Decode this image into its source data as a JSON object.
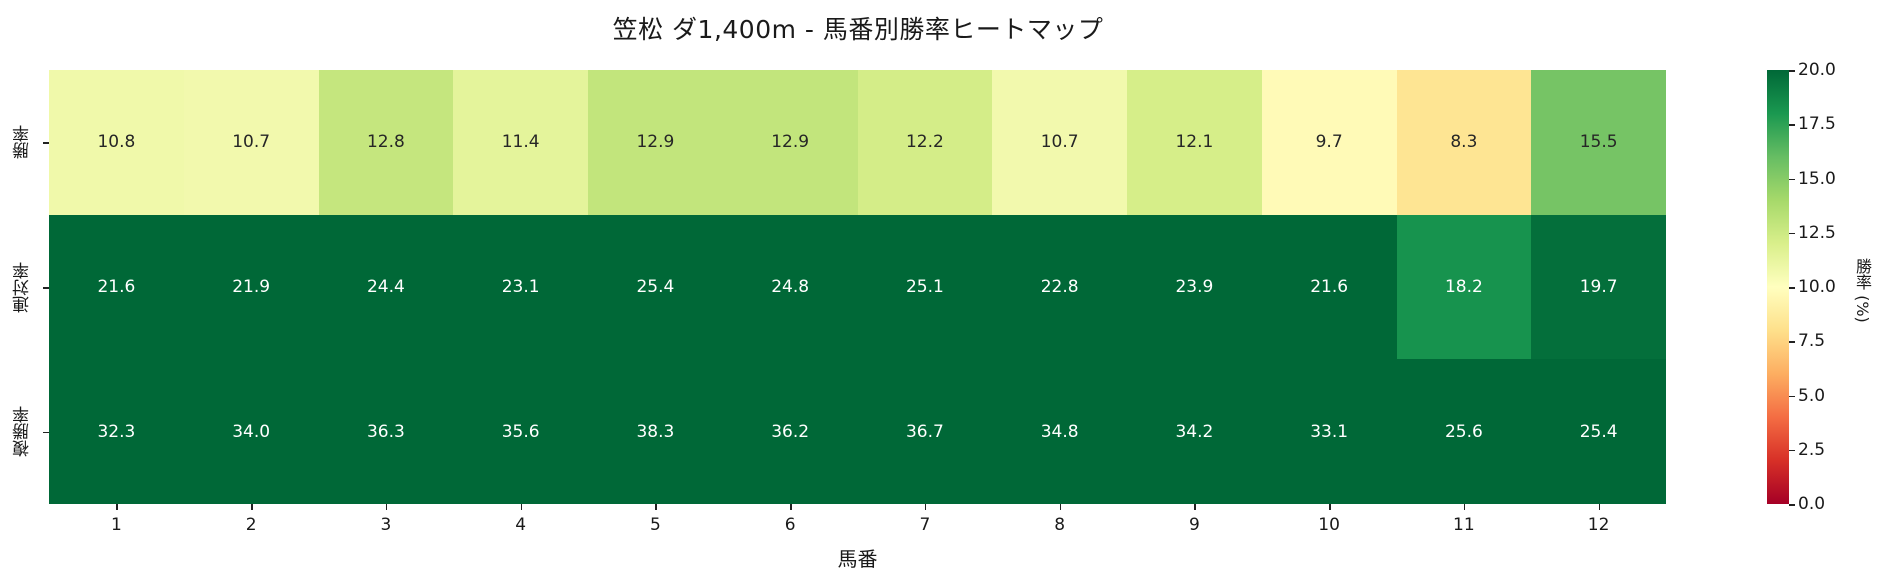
{
  "title": "笠松 ダ1,400m - 馬番別勝率ヒートマップ",
  "xaxis_title": "馬番",
  "colorbar_title": "勝率 (%)",
  "row_labels": [
    "勝率",
    "連対率",
    "複勝率"
  ],
  "col_labels": [
    "1",
    "2",
    "3",
    "4",
    "5",
    "6",
    "7",
    "8",
    "9",
    "10",
    "11",
    "12"
  ],
  "colorbar_ticks": [
    "0.0",
    "2.5",
    "5.0",
    "7.5",
    "10.0",
    "12.5",
    "15.0",
    "17.5",
    "20.0"
  ],
  "cells": [
    [
      "10.8",
      "10.7",
      "12.8",
      "11.4",
      "12.9",
      "12.9",
      "12.2",
      "10.7",
      "12.1",
      "9.7",
      "8.3",
      "15.5"
    ],
    [
      "21.6",
      "21.9",
      "24.4",
      "23.1",
      "25.4",
      "24.8",
      "25.1",
      "22.8",
      "23.9",
      "21.6",
      "18.2",
      "19.7"
    ],
    [
      "32.3",
      "34.0",
      "36.3",
      "35.6",
      "38.3",
      "36.2",
      "36.7",
      "34.8",
      "34.2",
      "33.1",
      "25.6",
      "25.4"
    ]
  ],
  "colors": {
    "colormap": "RdYlGn",
    "vmin": 0,
    "vmax": 20,
    "dark_text": "#262626",
    "light_text": "#ffffff"
  },
  "chart_data": {
    "type": "heatmap",
    "title": "笠松 ダ1,400m - 馬番別勝率ヒートマップ",
    "xlabel": "馬番",
    "ylabel": "",
    "x": [
      1,
      2,
      3,
      4,
      5,
      6,
      7,
      8,
      9,
      10,
      11,
      12
    ],
    "y": [
      "勝率",
      "連対率",
      "複勝率"
    ],
    "values": [
      [
        10.8,
        10.7,
        12.8,
        11.4,
        12.9,
        12.9,
        12.2,
        10.7,
        12.1,
        9.7,
        8.3,
        15.5
      ],
      [
        21.6,
        21.9,
        24.4,
        23.1,
        25.4,
        24.8,
        25.1,
        22.8,
        23.9,
        21.6,
        18.2,
        19.7
      ],
      [
        32.3,
        34.0,
        36.3,
        35.6,
        38.3,
        36.2,
        36.7,
        34.8,
        34.2,
        33.1,
        25.6,
        25.4
      ]
    ],
    "colorbar": {
      "label": "勝率 (%)",
      "range": [
        0,
        20
      ],
      "ticks": [
        0.0,
        2.5,
        5.0,
        7.5,
        10.0,
        12.5,
        15.0,
        17.5,
        20.0
      ],
      "colormap": "RdYlGn"
    },
    "annotations": "cell values shown with 1 decimal"
  }
}
